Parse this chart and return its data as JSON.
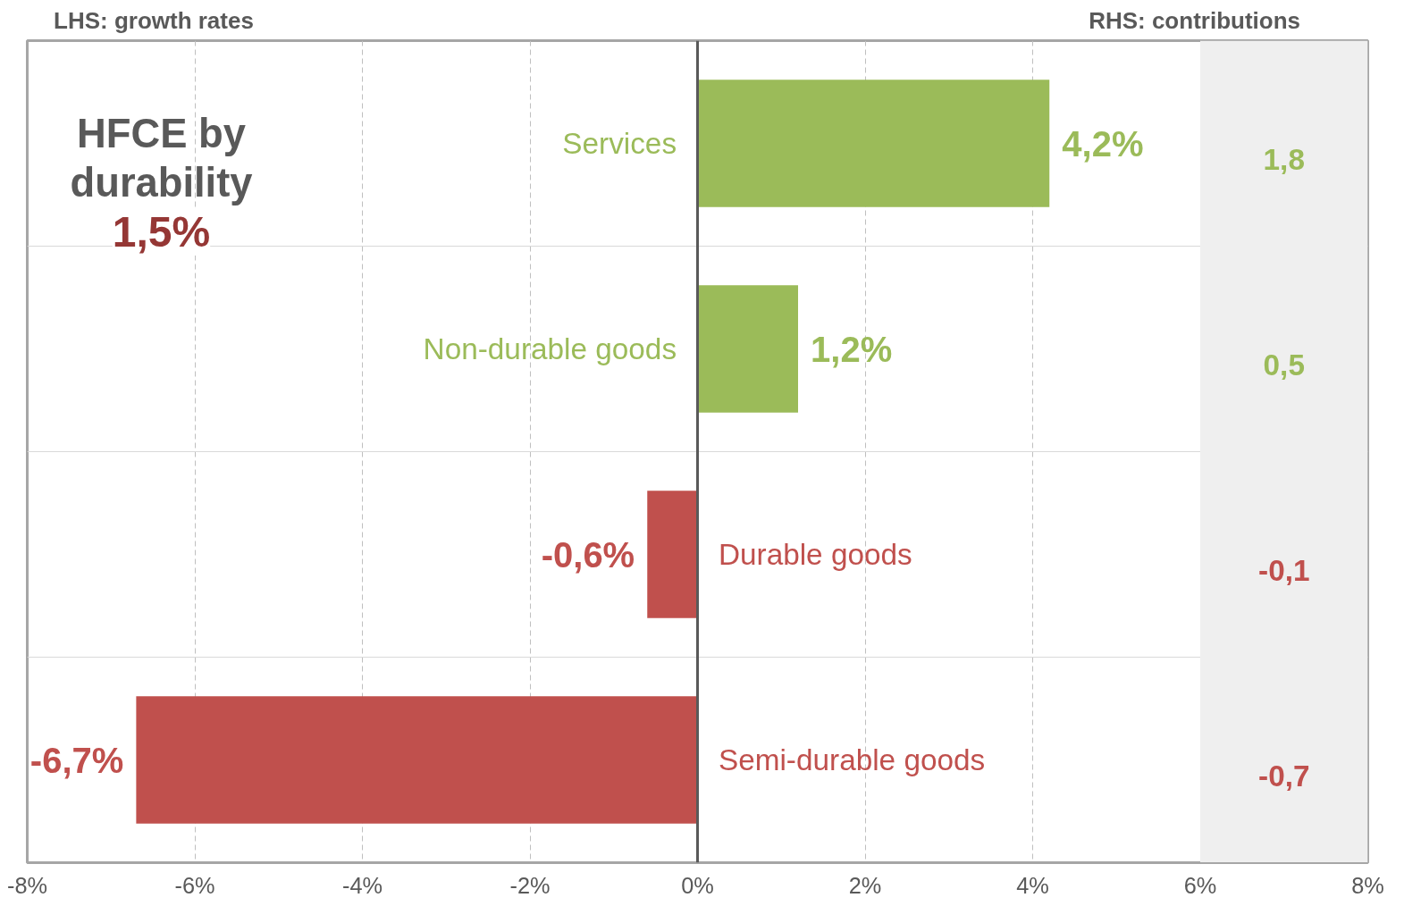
{
  "chart_data": {
    "type": "bar",
    "orientation": "horizontal",
    "title": "HFCE by durability",
    "subtitle": "1,5%",
    "categories": [
      "Services",
      "Non-durable goods",
      "Durable goods",
      "Semi-durable goods"
    ],
    "values": [
      4.2,
      1.2,
      -0.6,
      -6.7
    ],
    "colors": [
      "#9bbb59",
      "#9bbb59",
      "#c0504d",
      "#c0504d"
    ],
    "value_labels": [
      "4,2%",
      "1,2%",
      "-0,6%",
      "-6,7%"
    ],
    "xlim": [
      -8,
      8
    ],
    "xticks": [
      {
        "value": -8,
        "label": "-8%"
      },
      {
        "value": -6,
        "label": "-6%"
      },
      {
        "value": -4,
        "label": "-4%"
      },
      {
        "value": -2,
        "label": "-2%"
      },
      {
        "value": 0,
        "label": "0%"
      },
      {
        "value": 2,
        "label": "2%"
      },
      {
        "value": 4,
        "label": "4%"
      },
      {
        "value": 6,
        "label": "6%"
      },
      {
        "value": 8,
        "label": "8%"
      }
    ],
    "grid": true,
    "tick_labels": "x",
    "bands": [
      {
        "axis": "x",
        "from": 6,
        "to": 8,
        "color": "#efefef"
      }
    ],
    "annotations": [
      "LHS: growth rates",
      "RHS: contributions",
      "1,8",
      "0,5",
      "-0,1",
      "-0,7"
    ]
  }
}
